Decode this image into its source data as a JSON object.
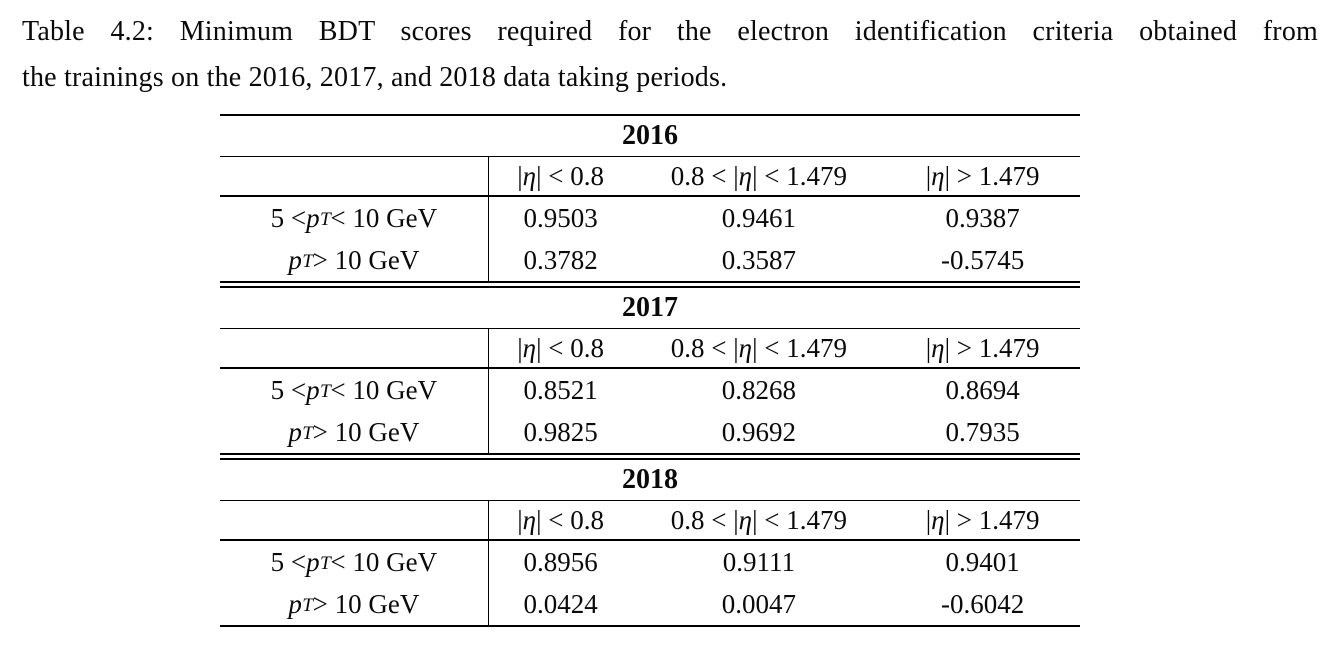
{
  "caption": {
    "line1": "Table 4.2: Minimum BDT scores required for the electron identification criteria obtained from",
    "line2": "the trainings on the 2016, 2017, and 2018 data taking periods."
  },
  "col_headers": [
    {
      "pre": "|",
      "sym": "η",
      "post": "| < 0.8"
    },
    {
      "pre": "0.8 < |",
      "sym": "η",
      "post": "| < 1.479"
    },
    {
      "pre": "|",
      "sym": "η",
      "post": "| > 1.479"
    }
  ],
  "row_labels": [
    {
      "pre": "5 < ",
      "sym": "p",
      "sub": "T",
      "post": " < 10 GeV"
    },
    {
      "pre": "",
      "sym": "p",
      "sub": "T",
      "post": " > 10 GeV"
    }
  ],
  "periods": [
    {
      "year": "2016",
      "values": [
        [
          "0.9503",
          "0.9461",
          "0.9387"
        ],
        [
          "0.3782",
          "0.3587",
          "-0.5745"
        ]
      ]
    },
    {
      "year": "2017",
      "values": [
        [
          "0.8521",
          "0.8268",
          "0.8694"
        ],
        [
          "0.9825",
          "0.9692",
          "0.7935"
        ]
      ]
    },
    {
      "year": "2018",
      "values": [
        [
          "0.8956",
          "0.9111",
          "0.9401"
        ],
        [
          "0.0424",
          "0.0047",
          "-0.6042"
        ]
      ]
    }
  ],
  "colors": {
    "text": "#0a0a0a",
    "rule": "#000000",
    "background": "#ffffff"
  }
}
